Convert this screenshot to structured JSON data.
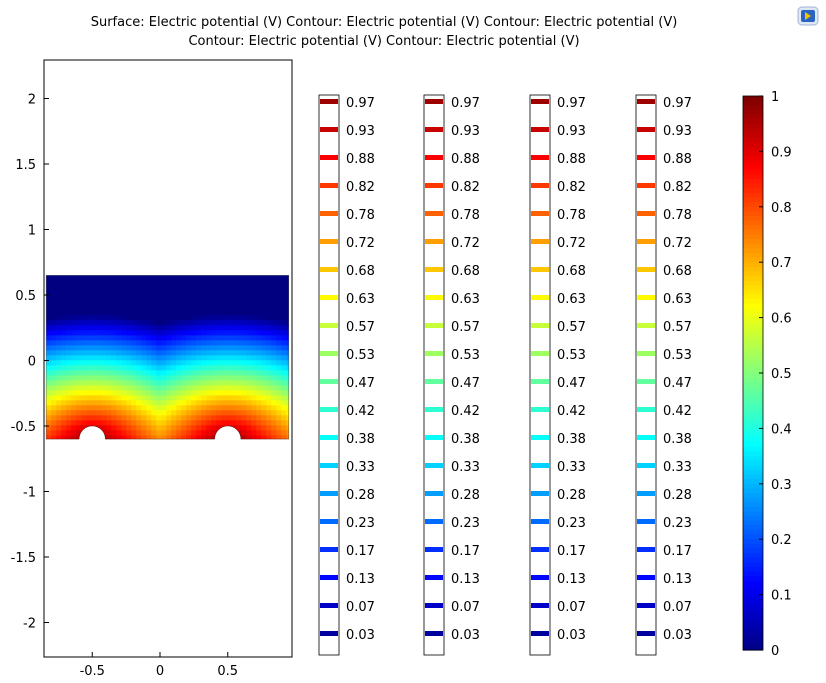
{
  "title_lines": [
    "Surface: Electric potential (V)  Contour: Electric potential (V)  Contour: Electric potential (V)",
    "Contour: Electric potential (V)  Contour: Electric potential (V)"
  ],
  "app_icon": "comsol-logo-icon",
  "chart_data": {
    "type": "heatmap",
    "plot_kind": "surface-and-contour",
    "x_ticks": [
      "-0.5",
      "0",
      "0.5"
    ],
    "x_tick_values": [
      -0.5,
      0,
      0.5
    ],
    "y_ticks": [
      "2",
      "1.5",
      "1",
      "0.5",
      "0",
      "-0.5",
      "-1",
      "-1.5",
      "-2"
    ],
    "y_tick_values": [
      2,
      1.5,
      1,
      0.5,
      0,
      -0.5,
      -1,
      -1.5,
      -2
    ],
    "xlim": [
      -0.88,
      0.95
    ],
    "ylim": [
      -2.26,
      2.3
    ],
    "domain": {
      "x_range": [
        -0.84,
        0.95
      ],
      "y_range": [
        -0.6,
        0.65
      ],
      "electrodes": [
        {
          "center_x": -0.5,
          "center_y": -0.6,
          "radius": 0.1,
          "potential": 1
        },
        {
          "center_x": 0.5,
          "center_y": -0.6,
          "radius": 0.1,
          "potential": 1
        }
      ],
      "min_potential_at_top": 0
    },
    "colormap": "jet",
    "contour_levels": [
      "0.97",
      "0.93",
      "0.88",
      "0.82",
      "0.78",
      "0.72",
      "0.68",
      "0.63",
      "0.57",
      "0.53",
      "0.47",
      "0.42",
      "0.38",
      "0.33",
      "0.28",
      "0.23",
      "0.17",
      "0.13",
      "0.07",
      "0.03"
    ],
    "contour_legends": 4,
    "colorbar": {
      "ticks": [
        "1",
        "0.9",
        "0.8",
        "0.7",
        "0.6",
        "0.5",
        "0.4",
        "0.3",
        "0.2",
        "0.1",
        "0"
      ],
      "tick_values": [
        1,
        0.9,
        0.8,
        0.7,
        0.6,
        0.5,
        0.4,
        0.3,
        0.2,
        0.1,
        0
      ],
      "range": [
        0,
        1
      ]
    },
    "grid": false
  }
}
